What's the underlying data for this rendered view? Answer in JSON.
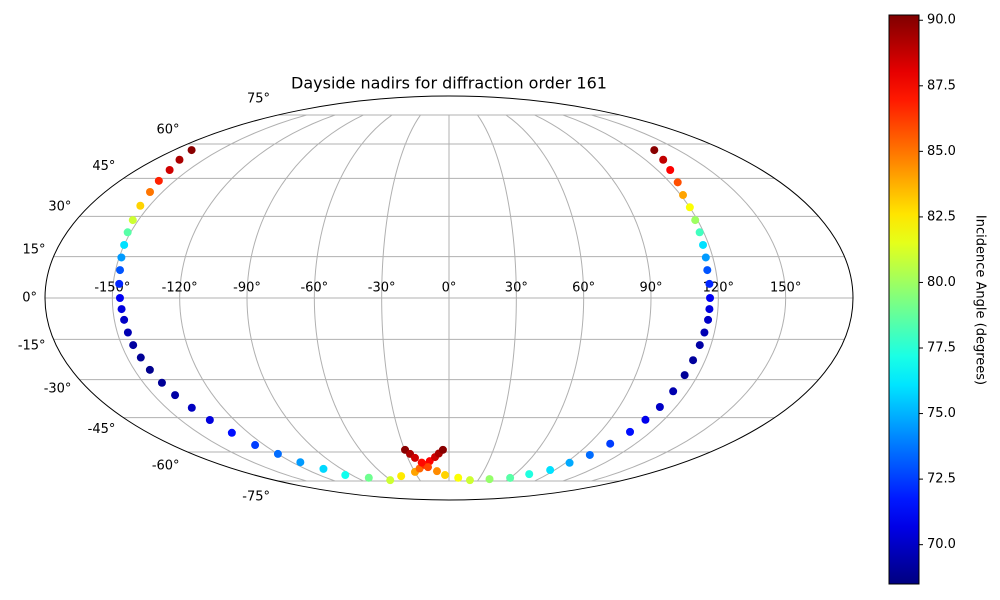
{
  "chart_data": {
    "type": "scatter",
    "projection": "mollweide",
    "colormap": "jet",
    "title": "Dayside nadirs for diffraction order 161",
    "colorbar_label": "Incidence Angle (degrees)",
    "x": [
      -168.4,
      -164.7,
      -160.9,
      -158.7,
      -156.5,
      -154.6,
      -152.7,
      -151.4,
      -150.0,
      -149.0,
      -148.0,
      -147.3,
      -146.6,
      -146.1,
      -145.6,
      -145.2,
      -144.7,
      -143.7,
      -142.6,
      -140.9,
      -139.2,
      -136.5,
      -133.7,
      -129.9,
      -126.0,
      -119.9,
      -113.7,
      -104.9,
      -96.0,
      -78.3,
      -60.6,
      -45.2,
      -29.8,
      -24.4,
      -19.0,
      -14.6,
      -10.1,
      -7.1,
      -4.1,
      -29.7,
      -27.3,
      -24.8,
      -21.0,
      -17.1,
      -10.4,
      -3.7,
      9.0,
      21.6,
      40.8,
      59.9,
      73.0,
      86.0,
      92.9,
      99.7,
      103.7,
      107.7,
      109.7,
      111.6,
      112.6,
      113.6,
      114.3,
      114.9,
      115.5,
      116.1,
      116.2,
      116.3,
      116.3,
      116.2,
      116.8,
      117.3,
      118.1,
      118.9,
      120.1,
      121.2,
      124.3,
      127.4,
      130.9,
      134.3
    ],
    "y": [
      57.2,
      52.9,
      48.5,
      44.0,
      39.5,
      34.1,
      28.6,
      24.0,
      19.3,
      14.7,
      10.1,
      5.1,
      0,
      -4.0,
      -7.9,
      -12.5,
      -17.1,
      -21.7,
      -26.3,
      -31.2,
      -36.0,
      -41.0,
      -46.0,
      -51.4,
      -56.8,
      -60.9,
      -64.9,
      -68.3,
      -71.6,
      -73.1,
      -74.5,
      -72.2,
      -69.9,
      -68.1,
      -66.3,
      -64.4,
      -62.4,
      -60.7,
      -59.0,
      -59.0,
      -60.9,
      -62.8,
      -65.1,
      -67.4,
      -69.5,
      -71.6,
      -73.1,
      -74.5,
      -73.9,
      -73.2,
      -71.1,
      -68.9,
      -65.2,
      -61.4,
      -56.2,
      -51.0,
      -45.9,
      -40.7,
      -34.5,
      -28.3,
      -22.7,
      -17.1,
      -12.5,
      -7.9,
      -4.0,
      0,
      5.1,
      10.1,
      14.7,
      19.3,
      24.0,
      28.6,
      33.5,
      38.3,
      43.4,
      48.5,
      52.9,
      57.2
    ],
    "c": [
      90,
      89.3,
      88.5,
      86.8,
      85,
      83,
      81,
      78.5,
      76,
      74.5,
      73,
      72,
      71,
      70.5,
      70,
      69.6,
      69.2,
      69,
      68.8,
      69,
      69.3,
      69.9,
      70.5,
      71.5,
      72.5,
      73.5,
      74.5,
      75.8,
      77,
      79,
      81,
      82.5,
      84,
      85.3,
      86.5,
      87.5,
      88.5,
      89.3,
      90,
      90,
      89.3,
      88.5,
      87.3,
      86,
      84.5,
      83,
      82,
      81,
      79.8,
      78.5,
      77.3,
      76,
      74.8,
      73.5,
      72.5,
      71.5,
      70.8,
      70,
      69.5,
      69,
      69.1,
      69.3,
      69.6,
      70,
      70.5,
      71,
      72,
      73,
      74.5,
      76,
      78,
      80,
      82,
      84,
      85.8,
      87.5,
      88.8,
      90
    ],
    "xlim": [
      -180,
      180
    ],
    "ylim": [
      -90,
      90
    ],
    "xticks": [
      {
        "value": -150,
        "label": "-150°"
      },
      {
        "value": -120,
        "label": "-120°"
      },
      {
        "value": -90,
        "label": "-90°"
      },
      {
        "value": -60,
        "label": "-60°"
      },
      {
        "value": -30,
        "label": "-30°"
      },
      {
        "value": 0,
        "label": "0°"
      },
      {
        "value": 30,
        "label": "30°"
      },
      {
        "value": 60,
        "label": "60°"
      },
      {
        "value": 90,
        "label": "90°"
      },
      {
        "value": 120,
        "label": "120°"
      },
      {
        "value": 150,
        "label": "150°"
      }
    ],
    "yticks": [
      {
        "value": -75,
        "label": "-75°"
      },
      {
        "value": -60,
        "label": "-60°"
      },
      {
        "value": -45,
        "label": "-45°"
      },
      {
        "value": -30,
        "label": "-30°"
      },
      {
        "value": -15,
        "label": "-15°"
      },
      {
        "value": 0,
        "label": "0°"
      },
      {
        "value": 15,
        "label": "15°"
      },
      {
        "value": 30,
        "label": "30°"
      },
      {
        "value": 45,
        "label": "45°"
      },
      {
        "value": 60,
        "label": "60°"
      },
      {
        "value": 75,
        "label": "75°"
      }
    ],
    "clim": [
      68.5,
      90.2
    ],
    "cticks": [
      {
        "value": 70,
        "label": "70.0"
      },
      72.5,
      {
        "value": 75,
        "label": "75.0"
      },
      77.5,
      {
        "value": 80,
        "label": "80.0"
      },
      82.5,
      {
        "value": 85,
        "label": "85.0"
      },
      87.5,
      {
        "value": 90,
        "label": "90.0"
      }
    ],
    "grid": true
  }
}
